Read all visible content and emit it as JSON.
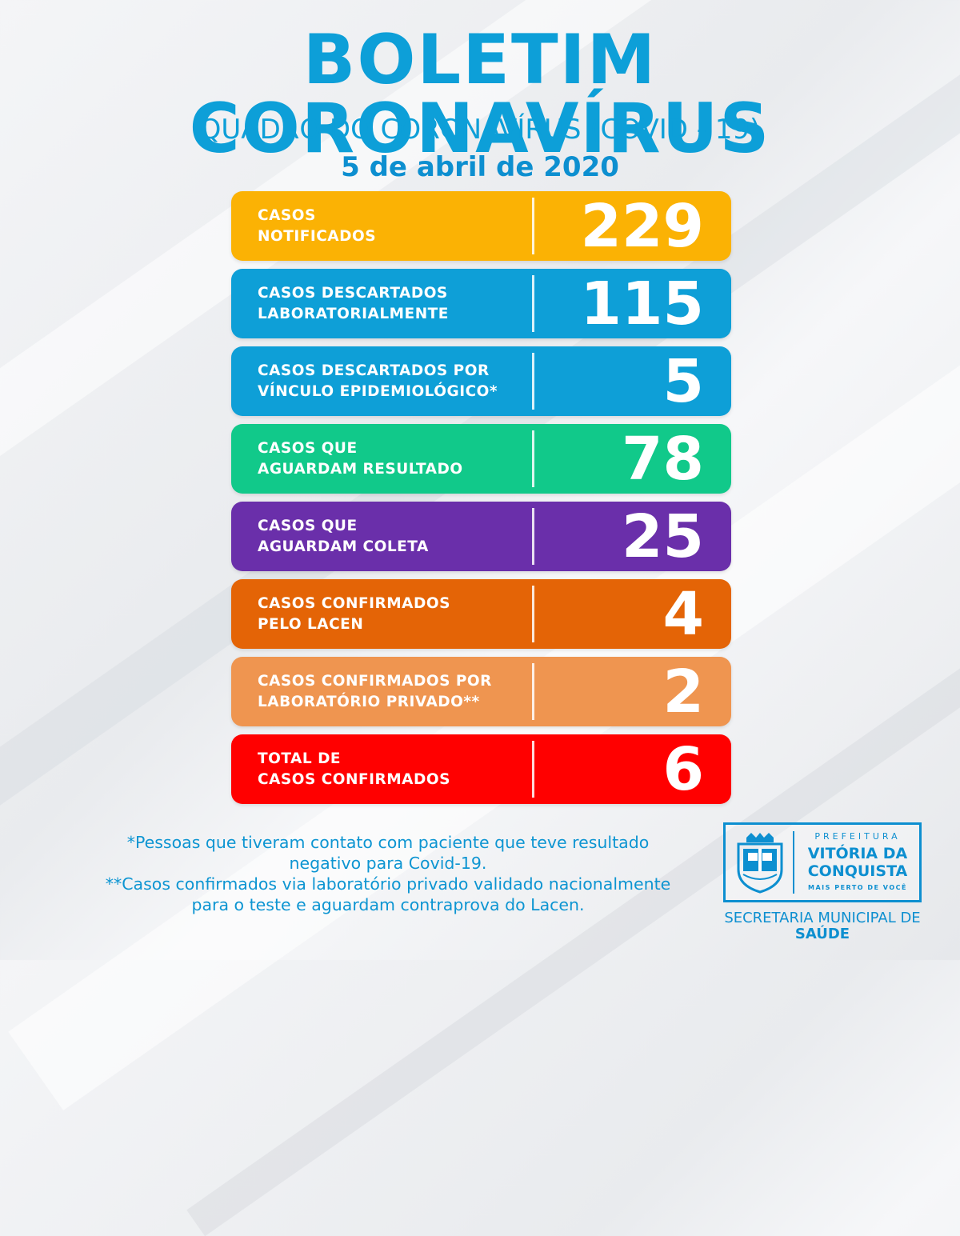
{
  "header": {
    "title": "BOLETIM CORONAVÍRUS",
    "subtitle": "QUADRO DO CORONAVÍRUS (COVID - 19)",
    "date": "5 de abril de 2020"
  },
  "cards": [
    {
      "line1": "CASOS",
      "line2": "NOTIFICADOS",
      "value": "229",
      "color": "#fbb204"
    },
    {
      "line1": "CASOS DESCARTADOS",
      "line2": "LABORATORIALMENTE",
      "value": "115",
      "color": "#0e9fd7"
    },
    {
      "line1": "CASOS DESCARTADOS POR",
      "line2": "VÍNCULO EPIDEMIOLÓGICO*",
      "value": "5",
      "color": "#0e9fd7"
    },
    {
      "line1": "CASOS QUE",
      "line2": "AGUARDAM RESULTADO",
      "value": "78",
      "color": "#11c98a"
    },
    {
      "line1": "CASOS QUE",
      "line2": "AGUARDAM COLETA",
      "value": "25",
      "color": "#6a2faa"
    },
    {
      "line1": "CASOS CONFIRMADOS",
      "line2": "PELO LACEN",
      "value": "4",
      "color": "#e46406"
    },
    {
      "line1": "CASOS CONFIRMADOS POR",
      "line2": "LABORATÓRIO PRIVADO**",
      "value": "2",
      "color": "#ef9550"
    },
    {
      "line1": "TOTAL DE",
      "line2": "CASOS CONFIRMADOS",
      "value": "6",
      "color": "#ff0000"
    }
  ],
  "footnotes": {
    "line1": "*Pessoas que tiveram contato com paciente que teve resultado",
    "line2": "negativo para Covid-19.",
    "line3": "**Casos confirmados via laboratório privado validado nacionalmente",
    "line4": "para o teste e aguardam contraprova do Lacen."
  },
  "logo": {
    "prefeitura": "PREFEITURA",
    "city_line1": "VITÓRIA DA",
    "city_line2": "CONQUISTA",
    "slogan": "MAIS PERTO DE VOCÊ",
    "crest_text": "VITÓRIA DA CONQUISTA",
    "brand_color": "#0d8fd0"
  },
  "secretaria": {
    "line1": "SECRETARIA MUNICIPAL DE",
    "line2": "SAÚDE"
  }
}
